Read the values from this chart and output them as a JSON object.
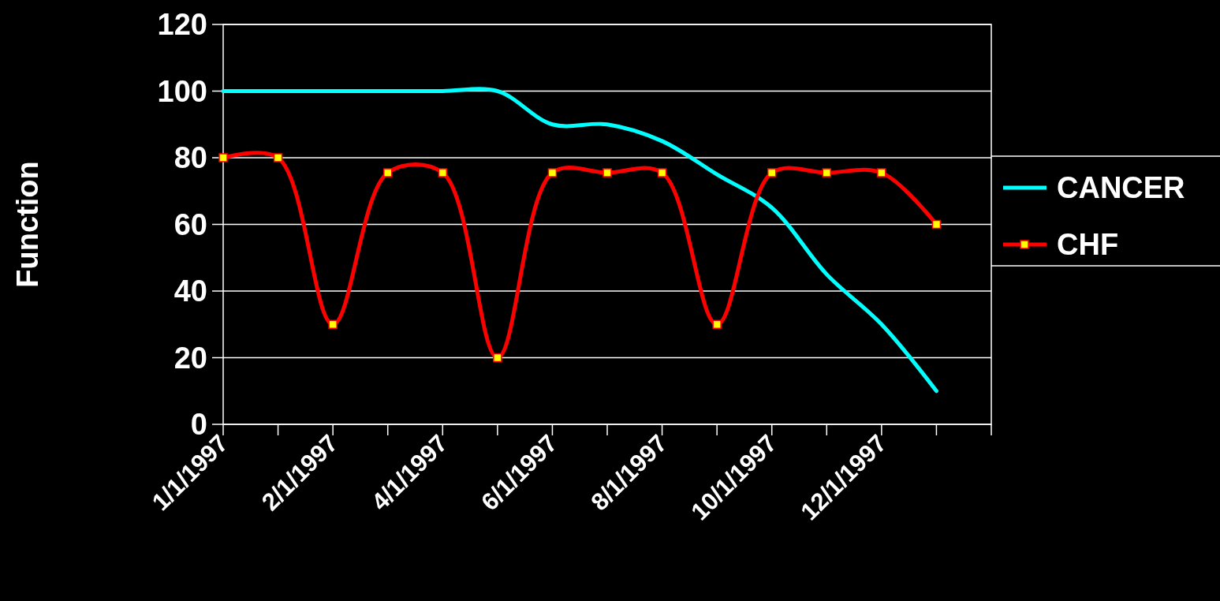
{
  "chart_data": {
    "type": "line",
    "ylabel": "Function",
    "categories": [
      "1/1/1997",
      null,
      "2/1/1997",
      null,
      "4/1/1997",
      null,
      "6/1/1997",
      null,
      "8/1/1997",
      null,
      "10/1/1997",
      null,
      "12/1/1997",
      null,
      null
    ],
    "series": [
      {
        "name": "CANCER",
        "color": "#00ffff",
        "marker": "none",
        "values": [
          100,
          100,
          100,
          100,
          100,
          100,
          90,
          90,
          85,
          75,
          65,
          45,
          30,
          10,
          null
        ]
      },
      {
        "name": "CHF",
        "color": "#ff0000",
        "marker": "square",
        "values": [
          80,
          80,
          30,
          75.5,
          75.5,
          20,
          75.5,
          75.5,
          75.5,
          30,
          75.5,
          75.5,
          75.5,
          60,
          null
        ]
      }
    ],
    "ylim": [
      0,
      120
    ],
    "yticks": [
      0,
      20,
      40,
      60,
      80,
      100,
      120
    ],
    "grid": "y",
    "legend": "right"
  }
}
